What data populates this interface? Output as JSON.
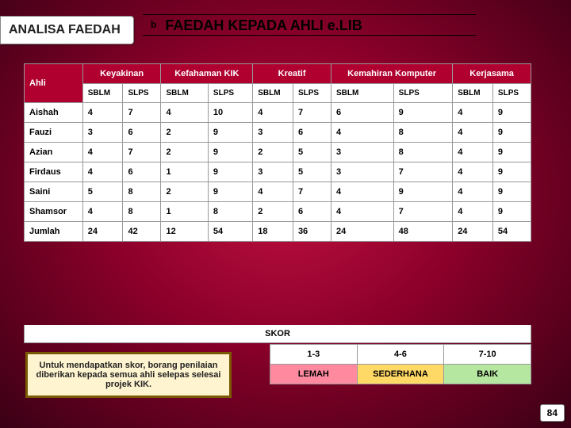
{
  "tab_label": "ANALISA FAEDAH",
  "title_section": "b",
  "title_text": "FAEDAH KEPADA AHLI e.LIB",
  "page_number": "84",
  "table": {
    "ahli_header": "Ahli",
    "groups": [
      "Keyakinan",
      "Kefahaman KIK",
      "Kreatif",
      "Kemahiran Komputer",
      "Kerjasama"
    ],
    "sub": [
      "SBLM",
      "SLPS"
    ],
    "rows": [
      {
        "n": "Aishah",
        "v": [
          "4",
          "7",
          "4",
          "10",
          "4",
          "7",
          "6",
          "9",
          "4",
          "9"
        ]
      },
      {
        "n": "Fauzi",
        "v": [
          "3",
          "6",
          "2",
          "9",
          "3",
          "6",
          "4",
          "8",
          "4",
          "9"
        ]
      },
      {
        "n": "Azian",
        "v": [
          "4",
          "7",
          "2",
          "9",
          "2",
          "5",
          "3",
          "8",
          "4",
          "9"
        ]
      },
      {
        "n": "Firdaus",
        "v": [
          "4",
          "6",
          "1",
          "9",
          "3",
          "5",
          "3",
          "7",
          "4",
          "9"
        ]
      },
      {
        "n": "Saini",
        "v": [
          "5",
          "8",
          "2",
          "9",
          "4",
          "7",
          "4",
          "9",
          "4",
          "9"
        ]
      },
      {
        "n": "Shamsor",
        "v": [
          "4",
          "8",
          "1",
          "8",
          "2",
          "6",
          "4",
          "7",
          "4",
          "9"
        ]
      },
      {
        "n": "Jumlah",
        "v": [
          "24",
          "42",
          "12",
          "54",
          "18",
          "36",
          "24",
          "48",
          "24",
          "54"
        ]
      }
    ]
  },
  "skor_header": "SKOR",
  "note_text": "Untuk mendapatkan skor, borang penilaian diberikan kepada semua ahli selepas selesai projek KIK.",
  "skor": {
    "ranges": [
      "1-3",
      "4-6",
      "7-10"
    ],
    "labels": [
      "LEMAH",
      "SEDERHANA",
      "BAIK"
    ]
  }
}
